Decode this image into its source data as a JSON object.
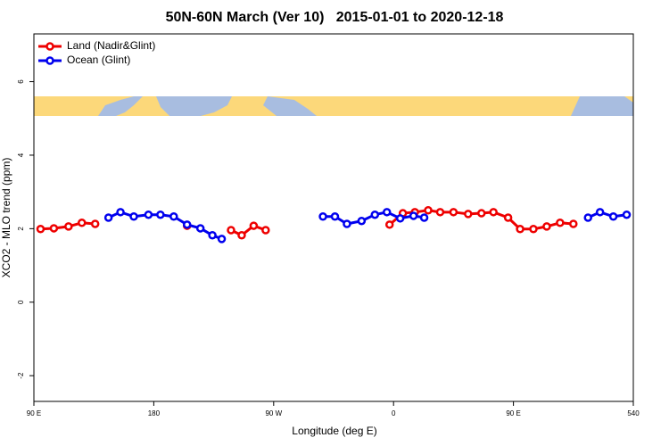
{
  "chart_data": {
    "type": "line",
    "title": "50N-60N March (Ver 10)   2015-01-01 to 2020-12-18",
    "x_label": "Longitude (deg E)",
    "y_label": "XCO2 - MLO trend (ppm)",
    "xlim": [
      90,
      540
    ],
    "ylim": [
      -2.7,
      7.3
    ],
    "xticks": [
      {
        "value": 90,
        "label": "90 E"
      },
      180,
      {
        "value": 270,
        "label": "90 W"
      },
      {
        "value": 360,
        "label": "0"
      },
      {
        "value": 450,
        "label": "90 E"
      },
      540
    ],
    "yticks": [
      -2,
      0,
      2,
      4,
      6
    ],
    "legend": "top-left",
    "series": [
      {
        "name": "Land (Nadir&Glint)",
        "color": "#ee0000",
        "x": [
          95,
          105,
          116,
          126,
          136,
          null,
          205,
          null,
          238,
          246,
          255,
          264,
          null,
          357,
          367,
          376,
          386,
          395,
          405,
          416,
          426,
          435,
          446,
          455,
          465,
          475,
          485,
          495
        ],
        "values": [
          1.99,
          2.01,
          2.06,
          2.16,
          2.13,
          null,
          2.08,
          null,
          1.96,
          1.82,
          2.08,
          1.96,
          null,
          2.11,
          2.42,
          2.45,
          2.5,
          2.45,
          2.45,
          2.4,
          2.42,
          2.45,
          2.3,
          1.99,
          1.99,
          2.06,
          2.16,
          2.13
        ]
      },
      {
        "name": "Ocean (Glint)",
        "color": "#0000ee",
        "x": [
          146,
          155,
          165,
          176,
          185,
          195,
          205,
          215,
          224,
          231,
          null,
          307,
          316,
          325,
          336,
          346,
          355,
          365,
          375,
          383,
          null,
          506,
          515,
          525,
          535
        ],
        "values": [
          2.3,
          2.45,
          2.33,
          2.38,
          2.38,
          2.33,
          2.11,
          2.01,
          1.82,
          1.72,
          null,
          2.33,
          2.33,
          2.13,
          2.21,
          2.38,
          2.45,
          2.28,
          2.35,
          2.3,
          null,
          2.3,
          2.45,
          2.33,
          2.38
        ]
      }
    ]
  }
}
